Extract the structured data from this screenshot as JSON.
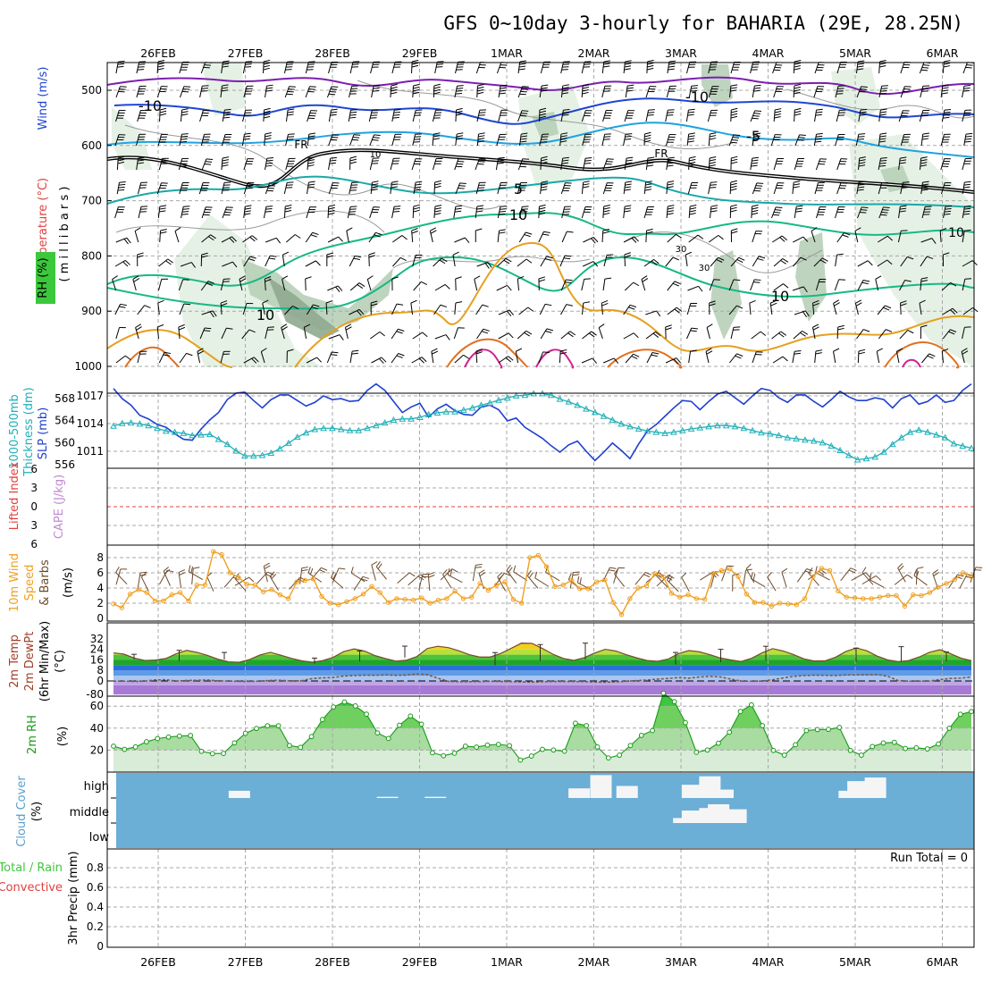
{
  "title": "GFS 0~10day 3-hourly for BAHARIA (29E, 28.25N)",
  "run_total": "Run Total = 0",
  "colors": {
    "panel_bg": "#ffffff",
    "grid": "#a8a8a8",
    "rh_light": "#e2efe2",
    "rh_mid": "#b7cfb7",
    "rh_dark": "#8fa88f",
    "temp_purple": "#7b1fb0",
    "temp_blue": "#1f46d0",
    "temp_sky": "#1fa3e0",
    "temp_teal": "#1aa8a8",
    "temp_green": "#16b886",
    "temp_orange": "#e5a020",
    "temp_darkorange": "#e07020",
    "temp_magenta": "#d0208c",
    "freezing": "#000000",
    "barb": "#000000",
    "slp": "#2040d0",
    "thickness": "#20b0b8",
    "wind10": "#f0a020",
    "barb10": "#6b4a2a",
    "rh2m_line": "#1a9a1a",
    "cloud_bg": "#6baed6",
    "cloud_fill": "#f5f5f5",
    "lifted_zero": "#e04040"
  },
  "chart_data": [
    {
      "type": "contour",
      "name": "upper-air",
      "x_dates": [
        "26FEB",
        "27FEB",
        "28FEB",
        "29FEB",
        "1MAR",
        "2MAR",
        "3MAR",
        "4MAR",
        "5MAR",
        "6MAR"
      ],
      "y_ticks": [
        500,
        600,
        700,
        800,
        900,
        1000
      ],
      "y_label_parts": [
        "Wind (m/s)",
        "Temperature (°C)",
        "RH (%)",
        "( m i l l i b a r s )"
      ],
      "contour_labels": [
        "-10",
        "-10",
        "-5",
        "FR",
        "FR",
        "5",
        "10",
        "10",
        "10",
        "10",
        "10",
        "30",
        "30"
      ]
    },
    {
      "type": "line",
      "name": "slp-thickness",
      "y_left_ticks": [
        556,
        560,
        564,
        568
      ],
      "y_right_ticks": [
        1011,
        1014,
        1017
      ],
      "y_label_parts": [
        "1000-500mb",
        "Thickness (dm)",
        "SLP (mb)"
      ],
      "series": [
        {
          "name": "SLP (mb)",
          "values": [
            1017.8,
            1016.7,
            1016.0,
            1014.9,
            1014.5,
            1013.9,
            1013.6,
            1012.9,
            1012.3,
            1012.2,
            1013.4,
            1014.4,
            1015.2,
            1016.6,
            1017.3,
            1017.4,
            1016.5,
            1015.7,
            1016.6,
            1017.1,
            1017.1,
            1016.5,
            1015.9,
            1016.3,
            1017.0,
            1016.6,
            1016.7,
            1016.4,
            1016.5,
            1017.6,
            1018.3,
            1017.6,
            1016.4,
            1015.2,
            1015.8,
            1016.2,
            1014.7,
            1015.6,
            1016.1,
            1015.4,
            1015.0,
            1014.9,
            1015.8,
            1016.0,
            1015.5,
            1014.3,
            1014.6,
            1013.6,
            1013.0,
            1012.4,
            1011.6,
            1010.9,
            1011.7,
            1012.1,
            1011.0,
            1010.0,
            1010.9,
            1011.9,
            1011.1,
            1010.2,
            1011.8,
            1013.2,
            1013.9,
            1014.8,
            1015.7,
            1016.5,
            1016.4,
            1015.5,
            1016.4,
            1017.2,
            1017.5,
            1016.8,
            1016.1,
            1017.0,
            1017.8,
            1017.6,
            1016.8,
            1016.3,
            1017.1,
            1017.1,
            1016.4,
            1015.8,
            1016.6,
            1017.5,
            1016.9,
            1016.5,
            1016.5,
            1016.8,
            1016.6,
            1015.7,
            1016.7,
            1017.1,
            1016.1,
            1016.4,
            1017.1,
            1016.3,
            1016.5,
            1017.6,
            1018.3
          ]
        },
        {
          "name": "1000-500mb Thickness (dm)",
          "values": [
            563.0,
            563.5,
            563.6,
            563.4,
            563.1,
            562.6,
            562.1,
            561.9,
            561.7,
            561.3,
            561.4,
            561.5,
            560.6,
            559.7,
            558.5,
            557.6,
            557.6,
            557.7,
            558.1,
            558.9,
            559.9,
            561.0,
            561.8,
            562.4,
            562.6,
            562.6,
            562.4,
            562.2,
            562.2,
            562.6,
            563.1,
            563.6,
            564.1,
            564.3,
            564.3,
            564.6,
            565.1,
            565.4,
            565.6,
            565.6,
            565.9,
            566.3,
            566.8,
            567.2,
            567.7,
            568.1,
            568.5,
            568.6,
            568.9,
            568.9,
            568.6,
            567.9,
            567.4,
            566.8,
            566.1,
            565.5,
            564.8,
            564.1,
            563.4,
            562.9,
            562.5,
            562.1,
            561.9,
            561.7,
            561.9,
            562.2,
            562.5,
            562.7,
            562.9,
            563.1,
            563.1,
            562.9,
            562.6,
            562.2,
            561.8,
            561.6,
            561.3,
            560.9,
            560.7,
            560.5,
            560.3,
            560.0,
            559.4,
            558.6,
            557.7,
            556.9,
            557.1,
            557.4,
            558.3,
            559.7,
            560.9,
            561.9,
            562.3,
            561.9,
            561.4,
            560.9,
            559.8,
            559.4,
            559.0
          ]
        }
      ]
    },
    {
      "type": "line",
      "name": "lifted-cape",
      "y_ticks": [
        "6",
        "3",
        "0",
        "3",
        "6"
      ],
      "y_label_parts": [
        "Lifted Index",
        "CAPE (J/kg)"
      ],
      "series": [
        {
          "name": "Lifted Index",
          "values": []
        }
      ]
    },
    {
      "type": "line",
      "name": "wind10m",
      "y_ticks": [
        0,
        2,
        4,
        6,
        8
      ],
      "y_label_parts": [
        "10m Wind",
        "Speed",
        "& Barbs",
        "(m/s)"
      ],
      "series": [
        {
          "name": "10m Wind Speed",
          "values": [
            1.9,
            1.4,
            3.2,
            3.8,
            3.4,
            2.3,
            2.3,
            3.1,
            3.4,
            2.3,
            4.4,
            4.4,
            8.8,
            8.4,
            6.0,
            5.4,
            4.5,
            4.4,
            3.5,
            3.8,
            3.1,
            2.6,
            4.8,
            5.0,
            5.2,
            2.9,
            2.0,
            1.8,
            2.2,
            2.6,
            3.2,
            4.2,
            3.4,
            2.1,
            2.6,
            2.5,
            2.4,
            2.7,
            2.0,
            2.4,
            2.6,
            3.6,
            2.6,
            2.8,
            4.6,
            3.7,
            4.4,
            4.8,
            2.5,
            2.0,
            8.0,
            8.3,
            6.8,
            4.2,
            4.4,
            5.0,
            3.9,
            3.9,
            4.8,
            5.1,
            2.1,
            0.5,
            2.6,
            4.0,
            4.3,
            5.9,
            5.5,
            3.3,
            2.8,
            3.1,
            2.6,
            2.5,
            5.9,
            6.3,
            6.5,
            5.5,
            3.2,
            2.1,
            2.1,
            1.6,
            2.0,
            1.9,
            1.8,
            2.6,
            5.5,
            6.6,
            6.3,
            3.6,
            2.8,
            2.7,
            2.6,
            2.6,
            2.8,
            3.0,
            3.0,
            1.6,
            3.1,
            3.0,
            3.4,
            4.1,
            4.6,
            5.1,
            6.0,
            5.5
          ]
        }
      ]
    },
    {
      "type": "area",
      "name": "temp2m",
      "y_ticks": [
        -80,
        0,
        8,
        16,
        24,
        32
      ],
      "y_label_parts": [
        "2m Temp",
        "2m DewPt",
        "(6hr Min/Max)",
        "(°C)"
      ],
      "series": [
        {
          "name": "2m Temp",
          "values": [
            21.4,
            20.4,
            17.4,
            15.6,
            15.9,
            17.1,
            20.7,
            23.3,
            21.7,
            19.4,
            16.5,
            14.6,
            14.2,
            16.3,
            19.8,
            21.8,
            19.6,
            17.2,
            15.3,
            14.3,
            15.5,
            18.0,
            22.3,
            24.4,
            22.7,
            19.3,
            17.0,
            15.1,
            15.8,
            18.6,
            24.7,
            26.4,
            25.4,
            23.0,
            20.0,
            18.2,
            18.2,
            20.9,
            24.8,
            28.8,
            28.6,
            24.7,
            20.4,
            17.1,
            15.7,
            17.7,
            21.3,
            24.1,
            22.8,
            20.0,
            17.6,
            15.6,
            15.0,
            16.6,
            20.8,
            23.1,
            22.2,
            20.0,
            17.5,
            16.0,
            14.8,
            17.3,
            21.4,
            24.6,
            22.8,
            20.1,
            16.8,
            15.2,
            15.3,
            18.0,
            22.4,
            25.1,
            23.0,
            18.9,
            16.0,
            14.7,
            15.5,
            18.2,
            21.8,
            23.8,
            20.8,
            17.4,
            15.4
          ],
          "max6h": [
            20.3,
            23.3,
            21.7,
            null,
            17.4,
            22.8,
            26.5,
            null,
            21.6,
            27.7,
            28.8,
            null,
            21.7,
            24.1,
            26.4,
            null,
            25.0,
            26.1,
            22.0
          ],
          "min6h": [
            16.4,
            15.1,
            16.3,
            null,
            13.1,
            14.9,
            17.8,
            null,
            12.1,
            15.3,
            16.5,
            null,
            12.4,
            14.4,
            15.5,
            null,
            14.3,
            14.9,
            15.0
          ]
        },
        {
          "name": "2m DewPt",
          "values": [
            -0.9,
            -0.9,
            -2.8,
            -0.6,
            0.8,
            0.9,
            -0.5,
            0.4,
            0.5,
            0.7,
            0.1,
            -0.4,
            -2.1,
            -2.4,
            -1.0,
            0.4,
            0.5,
            0.0,
            0.2,
            1.8,
            2.4,
            2.6,
            3.7,
            4.1,
            4.4,
            4.3,
            4.6,
            4.3,
            4.5,
            5.3,
            4.8,
            2.1,
            -2.6,
            -4.0,
            -4.1,
            -3.6,
            -1.7,
            -2.8,
            -3.7,
            -6.0,
            -7.1,
            -4.5,
            -2.6,
            -3.2,
            -3.1,
            -4.0,
            -5.9,
            -7.4,
            -5.4,
            -1.8,
            0.2,
            0.7,
            1.4,
            1.9,
            2.6,
            2.1,
            3.0,
            3.5,
            3.1,
            1.4,
            -0.6,
            -1.3,
            -0.7,
            0.9,
            2.3,
            3.5,
            4.1,
            4.4,
            4.3,
            4.1,
            4.6,
            4.6,
            4.7,
            4.9,
            3.6,
            0.3,
            -1.4,
            -1.0,
            -0.2,
            1.0,
            1.9,
            2.2,
            3.0
          ]
        }
      ]
    },
    {
      "type": "area",
      "name": "rh2m",
      "y_ticks": [
        20,
        40,
        60
      ],
      "y_label_parts": [
        "2m RH",
        "(%)"
      ],
      "series": [
        {
          "name": "2m RH",
          "values": [
            23.6,
            20.7,
            22.9,
            27.6,
            30.5,
            31.9,
            32.8,
            33.3,
            18.9,
            16.8,
            17.0,
            26.6,
            35.3,
            39.7,
            42.2,
            42.2,
            24.2,
            22.5,
            32.3,
            47.8,
            59.2,
            63.8,
            60.2,
            52.7,
            35.7,
            30.6,
            42.7,
            51.0,
            43.6,
            17.6,
            14.9,
            17.2,
            23.6,
            22.7,
            24.6,
            25.2,
            24.1,
            11.0,
            14.6,
            20.7,
            20.1,
            19.0,
            44.5,
            42.3,
            22.9,
            12.9,
            15.4,
            24.2,
            33.4,
            37.8,
            71.8,
            64.1,
            45.0,
            18.0,
            20.1,
            26.3,
            36.3,
            55.2,
            61.2,
            42.3,
            19.7,
            15.4,
            24.9,
            37.8,
            38.7,
            38.9,
            40.6,
            19.7,
            15.4,
            23.3,
            26.5,
            27.1,
            21.5,
            22.1,
            21.1,
            25.6,
            39.9,
            52.6,
            55.1
          ]
        }
      ]
    },
    {
      "type": "heatmap",
      "name": "cloud-cover",
      "y_ticks": [
        "high",
        "middle",
        "low"
      ],
      "y_label_parts": [
        "Cloud Cover",
        "(%)"
      ],
      "series": [
        {
          "name": "high",
          "blocks": [
            [
              0.85,
              0.3
            ],
            [
              2.55,
              0.05
            ],
            [
              3.1,
              0.05
            ],
            [
              4.75,
              0.4
            ],
            [
              5.0,
              0.95
            ],
            [
              5.3,
              0.5
            ],
            [
              6.05,
              0.55
            ],
            [
              6.25,
              0.9
            ],
            [
              6.4,
              0.35
            ],
            [
              7.85,
              0.3
            ],
            [
              7.95,
              0.7
            ],
            [
              8.15,
              0.85
            ]
          ]
        },
        {
          "name": "middle",
          "blocks": [
            [
              5.95,
              0.2
            ],
            [
              6.05,
              0.5
            ],
            [
              6.25,
              0.6
            ],
            [
              6.35,
              0.75
            ],
            [
              6.55,
              0.55
            ]
          ]
        }
      ]
    },
    {
      "type": "bar",
      "name": "precip",
      "y_ticks": [
        0,
        0.2,
        0.4,
        0.6,
        0.8
      ],
      "y_label_parts": [
        "Total / Rain",
        "Convective",
        "3hr Precip (mm)"
      ],
      "series": [
        {
          "name": "3hr Precip",
          "values": []
        }
      ]
    }
  ]
}
